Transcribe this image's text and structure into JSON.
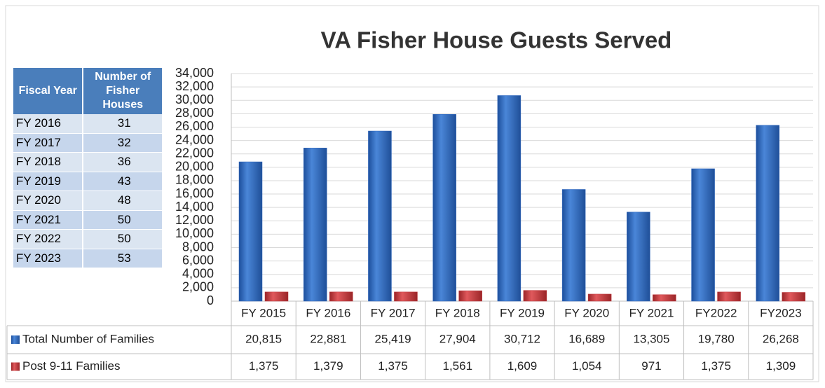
{
  "chart_data": {
    "type": "bar",
    "title": "VA Fisher House Guests Served",
    "categories": [
      "FY 2015",
      "FY 2016",
      "FY 2017",
      "FY 2018",
      "FY 2019",
      "FY 2020",
      "FY 2021",
      "FY2022",
      "FY2023"
    ],
    "series": [
      {
        "name": "Total Number of Families",
        "color": "#2e66be",
        "values": [
          20815,
          22881,
          25419,
          27904,
          30712,
          16689,
          13305,
          19780,
          26268
        ],
        "value_labels": [
          "20,815",
          "22,881",
          "25,419",
          "27,904",
          "30,712",
          "16,689",
          "13,305",
          "19,780",
          "26,268"
        ]
      },
      {
        "name": "Post 9-11 Families",
        "color": "#c0353a",
        "values": [
          1375,
          1379,
          1375,
          1561,
          1609,
          1054,
          971,
          1375,
          1309
        ],
        "value_labels": [
          "1,375",
          "1,379",
          "1,375",
          "1,561",
          "1,609",
          "1,054",
          "971",
          "1,375",
          "1,309"
        ]
      }
    ],
    "ylim": [
      0,
      34000
    ],
    "yticks": [
      0,
      {
        "value": 2000,
        "label": "2,000"
      },
      {
        "value": 4000,
        "label": "4,000"
      },
      {
        "value": 6000,
        "label": "6,000"
      },
      {
        "value": 8000,
        "label": "8,000"
      },
      {
        "value": 10000,
        "label": "10,000"
      },
      {
        "value": 12000,
        "label": "12,000"
      },
      {
        "value": 14000,
        "label": "14,000"
      },
      {
        "value": 16000,
        "label": "16,000"
      },
      {
        "value": 18000,
        "label": "18,000"
      },
      {
        "value": 20000,
        "label": "20,000"
      },
      {
        "value": 22000,
        "label": "22,000"
      },
      {
        "value": 24000,
        "label": "24,000"
      },
      {
        "value": 26000,
        "label": "26,000"
      },
      {
        "value": 28000,
        "label": "28,000"
      },
      {
        "value": 30000,
        "label": "30,000"
      },
      {
        "value": 32000,
        "label": "32,000"
      },
      {
        "value": 34000,
        "label": "34,000"
      }
    ],
    "grid": true
  },
  "side_table": {
    "headers": [
      "Fiscal Year",
      "Number of Fisher Houses"
    ],
    "rows": [
      [
        "FY 2016",
        31
      ],
      [
        "FY 2017",
        32
      ],
      [
        "FY 2018",
        36
      ],
      [
        "FY 2019",
        43
      ],
      [
        "FY 2020",
        48
      ],
      [
        "FY 2021",
        50
      ],
      [
        "FY 2022",
        50
      ],
      [
        "FY 2023",
        53
      ]
    ]
  }
}
